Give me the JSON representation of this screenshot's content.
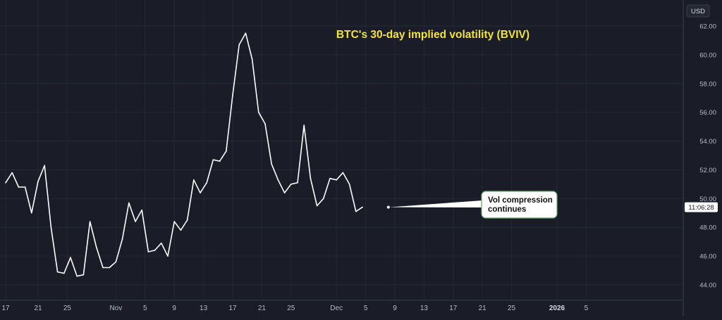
{
  "chart_data": {
    "type": "line",
    "title": "BTC's 30-day implied volatility (BVIV)",
    "currency": "USD",
    "price_tag": "11:06:28",
    "annotation": {
      "lines": [
        "Vol compression",
        "continues"
      ],
      "point_index": 59,
      "y": 49.4
    },
    "ylim": [
      42.6,
      63.2
    ],
    "yticks": [
      "44.00",
      "46.00",
      "48.00",
      "50.00",
      "52.00",
      "54.00",
      "56.00",
      "58.00",
      "60.00",
      "62.00"
    ],
    "xlim": [
      -0.2,
      89.5
    ],
    "xticks": [
      {
        "label": "17",
        "x": 0,
        "bold": false
      },
      {
        "label": "21",
        "x": 5,
        "bold": false
      },
      {
        "label": "25",
        "x": 9.5,
        "bold": false
      },
      {
        "label": "Nov",
        "x": 17,
        "bold": false
      },
      {
        "label": "5",
        "x": 21.5,
        "bold": false
      },
      {
        "label": "9",
        "x": 26,
        "bold": false
      },
      {
        "label": "13",
        "x": 30.5,
        "bold": false
      },
      {
        "label": "17",
        "x": 35,
        "bold": false
      },
      {
        "label": "21",
        "x": 39.5,
        "bold": false
      },
      {
        "label": "25",
        "x": 44,
        "bold": false
      },
      {
        "label": "Dec",
        "x": 51,
        "bold": false
      },
      {
        "label": "5",
        "x": 55.5,
        "bold": false
      },
      {
        "label": "9",
        "x": 60,
        "bold": false
      },
      {
        "label": "13",
        "x": 64.5,
        "bold": false
      },
      {
        "label": "17",
        "x": 69,
        "bold": false
      },
      {
        "label": "21",
        "x": 73.5,
        "bold": false
      },
      {
        "label": "25",
        "x": 78,
        "bold": false
      },
      {
        "label": "2026",
        "x": 85,
        "bold": true
      },
      {
        "label": "5",
        "x": 89.5,
        "bold": false
      }
    ],
    "series": [
      {
        "name": "BVIV",
        "values": [
          51.1,
          51.8,
          50.8,
          50.8,
          49.0,
          51.2,
          52.3,
          48.0,
          44.9,
          44.8,
          45.9,
          44.6,
          44.7,
          48.4,
          46.6,
          45.2,
          45.2,
          45.6,
          47.2,
          49.7,
          48.4,
          49.2,
          46.3,
          46.4,
          46.9,
          46.0,
          48.4,
          47.8,
          48.5,
          51.3,
          50.4,
          51.1,
          52.7,
          52.6,
          53.3,
          57.2,
          60.7,
          61.5,
          59.7,
          56.0,
          55.2,
          52.4,
          51.3,
          50.4,
          51.0,
          51.1,
          55.1,
          51.4,
          49.5,
          50.0,
          51.4,
          51.3,
          51.8,
          51.0,
          49.1,
          49.4
        ]
      }
    ]
  }
}
